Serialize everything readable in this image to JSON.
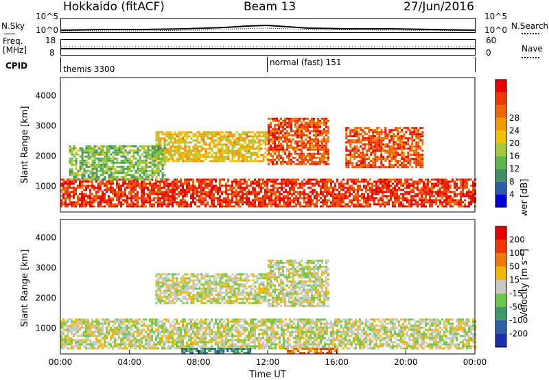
{
  "header": {
    "station": "Hokkaido (fitACF)",
    "beam": "Beam 13",
    "date": "27/Jun/2016"
  },
  "noise_panel": {
    "left_label": "N.Sky",
    "left_ticks": [
      "10^5",
      "10^0"
    ],
    "right_label": "N.Search",
    "right_ticks": [
      "10^5",
      "10^0"
    ]
  },
  "freq_panel": {
    "left_label_line1": "Freq.",
    "left_label_line2": "[MHz]",
    "left_ticks": [
      "18",
      "8"
    ],
    "right_label": "Nave",
    "right_ticks": [
      "60",
      "0"
    ]
  },
  "cpid_panel": {
    "label": "CPID",
    "program1": "themis 3300",
    "program2": "normal (fast) 151"
  },
  "chart_data": [
    {
      "type": "heatmap",
      "name": "power",
      "ylabel": "Slant Range [km]",
      "yticks": [
        1000,
        2000,
        3000,
        4000
      ],
      "colorbar_label": "Power [dB]",
      "colorbar_ticks": [
        4,
        8,
        12,
        16,
        20,
        24,
        28
      ],
      "colorbar_colors": [
        "#0000dd",
        "#2a5aa8",
        "#3f8f62",
        "#5cb84a",
        "#a6c93a",
        "#f2c200",
        "#f39a00",
        "#f16800",
        "#ee3a00",
        "#e80000"
      ],
      "regions": [
        {
          "t0": 0.0,
          "t1": 24.0,
          "r0": 300,
          "r1": 1250,
          "level": 28
        },
        {
          "t0": 5.5,
          "t1": 12.0,
          "r0": 1800,
          "r1": 2800,
          "level": 18
        },
        {
          "t0": 12.0,
          "t1": 15.5,
          "r0": 1700,
          "r1": 3200,
          "level": 26
        },
        {
          "t0": 16.5,
          "t1": 21.0,
          "r0": 1600,
          "r1": 2900,
          "level": 26
        },
        {
          "t0": 0.5,
          "t1": 6.0,
          "r0": 1200,
          "r1": 2300,
          "level": 12
        }
      ]
    },
    {
      "type": "heatmap",
      "name": "velocity",
      "ylabel": "Slant Range [km]",
      "yticks": [
        1000,
        2000,
        3000,
        4000
      ],
      "xlabel": "Time UT",
      "xticks": [
        "00:00",
        "04:00",
        "08:00",
        "12:00",
        "16:00",
        "20:00",
        "00:00"
      ],
      "colorbar_label": "Velocity [m s⁻¹]",
      "colorbar_ticks": [
        "200",
        "100",
        "50",
        "15",
        "-15",
        "-50",
        "-100",
        "-200"
      ],
      "colorbar_colors": [
        "#1a2fb0",
        "#2e5ea8",
        "#3f9a6a",
        "#6cc84a",
        "#c8c8c0",
        "#f0b800",
        "#f07a00",
        "#ee3a00",
        "#e80000"
      ],
      "regions": [
        {
          "t0": 0.0,
          "t1": 24.0,
          "r0": 300,
          "r1": 1300,
          "level": 0
        },
        {
          "t0": 5.5,
          "t1": 12.0,
          "r0": 1800,
          "r1": 2800,
          "level": 0
        },
        {
          "t0": 12.0,
          "t1": 15.5,
          "r0": 1700,
          "r1": 3200,
          "level": 0
        },
        {
          "t0": 7.0,
          "t1": 11.0,
          "r0": 150,
          "r1": 350,
          "level": -30
        },
        {
          "t0": 13.0,
          "t1": 16.0,
          "r0": 150,
          "r1": 350,
          "level": 30
        }
      ]
    }
  ]
}
